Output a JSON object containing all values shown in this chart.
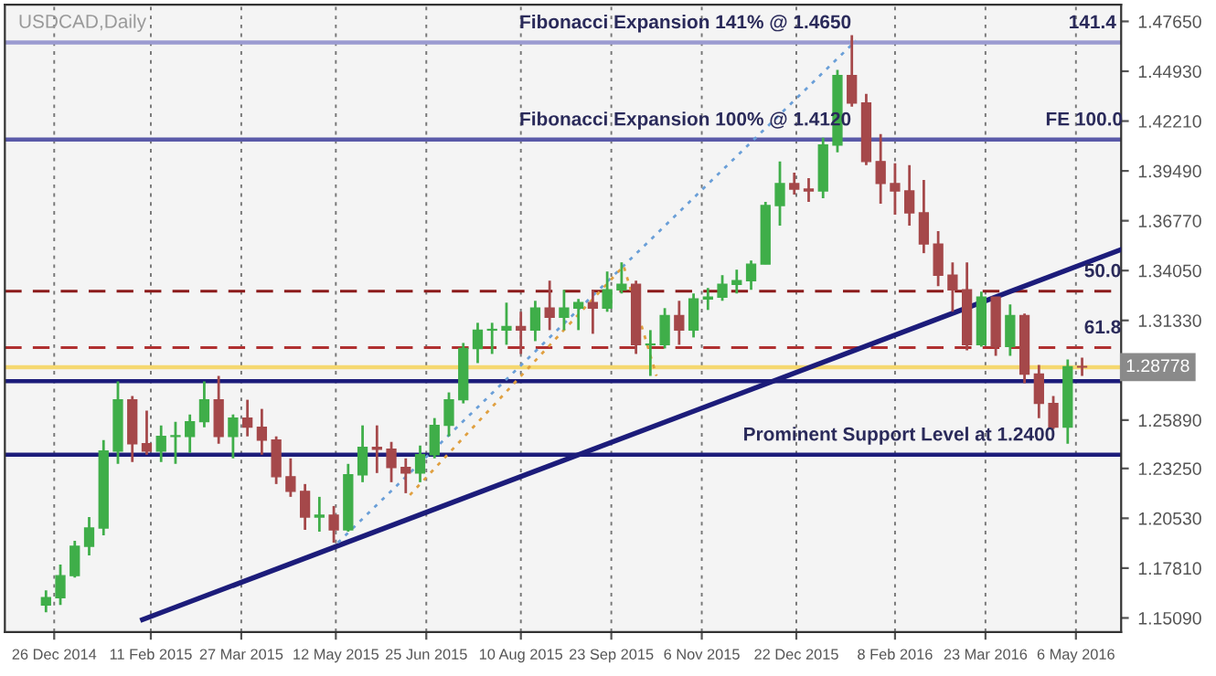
{
  "chart_data": {
    "type": "candlestick",
    "title": "USDCAD,Daily",
    "x": [
      "2014-12-22",
      "2014-12-29",
      "2015-01-05",
      "2015-01-12",
      "2015-01-19",
      "2015-01-26",
      "2015-02-02",
      "2015-02-09",
      "2015-02-16",
      "2015-02-23",
      "2015-03-02",
      "2015-03-09",
      "2015-03-16",
      "2015-03-23",
      "2015-03-30",
      "2015-04-06",
      "2015-04-13",
      "2015-04-20",
      "2015-04-27",
      "2015-05-04",
      "2015-05-11",
      "2015-05-18",
      "2015-05-25",
      "2015-06-01",
      "2015-06-08",
      "2015-06-15",
      "2015-06-22",
      "2015-06-29",
      "2015-07-06",
      "2015-07-13",
      "2015-07-20",
      "2015-07-27",
      "2015-08-03",
      "2015-08-10",
      "2015-08-17",
      "2015-08-24",
      "2015-08-31",
      "2015-09-07",
      "2015-09-14",
      "2015-09-21",
      "2015-09-28",
      "2015-10-05",
      "2015-10-12",
      "2015-10-19",
      "2015-10-26",
      "2015-11-02",
      "2015-11-09",
      "2015-11-16",
      "2015-11-23",
      "2015-11-30",
      "2015-12-07",
      "2015-12-14",
      "2015-12-21",
      "2015-12-28",
      "2016-01-04",
      "2016-01-11",
      "2016-01-18",
      "2016-01-25",
      "2016-02-01",
      "2016-02-08",
      "2016-02-15",
      "2016-02-22",
      "2016-02-29",
      "2016-03-07",
      "2016-03-14",
      "2016-03-21",
      "2016-03-28",
      "2016-04-04",
      "2016-04-11",
      "2016-04-18",
      "2016-04-25",
      "2016-05-02",
      "2016-05-09"
    ],
    "ohlc": [
      [
        1.158,
        1.166,
        1.154,
        1.162
      ],
      [
        1.162,
        1.18,
        1.158,
        1.174
      ],
      [
        1.174,
        1.193,
        1.173,
        1.19
      ],
      [
        1.19,
        1.206,
        1.185,
        1.2
      ],
      [
        1.2,
        1.248,
        1.196,
        1.242
      ],
      [
        1.242,
        1.28,
        1.235,
        1.27
      ],
      [
        1.27,
        1.272,
        1.236,
        1.246
      ],
      [
        1.246,
        1.264,
        1.24,
        1.242
      ],
      [
        1.242,
        1.256,
        1.236,
        1.25
      ],
      [
        1.25,
        1.258,
        1.235,
        1.25
      ],
      [
        1.25,
        1.262,
        1.241,
        1.258
      ],
      [
        1.258,
        1.28,
        1.255,
        1.27
      ],
      [
        1.27,
        1.283,
        1.246,
        1.25
      ],
      [
        1.25,
        1.262,
        1.238,
        1.26
      ],
      [
        1.26,
        1.27,
        1.25,
        1.255
      ],
      [
        1.255,
        1.265,
        1.24,
        1.248
      ],
      [
        1.248,
        1.25,
        1.224,
        1.228
      ],
      [
        1.228,
        1.238,
        1.217,
        1.22
      ],
      [
        1.22,
        1.224,
        1.199,
        1.206
      ],
      [
        1.206,
        1.217,
        1.198,
        1.207
      ],
      [
        1.207,
        1.212,
        1.192,
        1.199
      ],
      [
        1.199,
        1.235,
        1.198,
        1.229
      ],
      [
        1.229,
        1.256,
        1.225,
        1.244
      ],
      [
        1.244,
        1.256,
        1.23,
        1.243
      ],
      [
        1.243,
        1.247,
        1.225,
        1.233
      ],
      [
        1.233,
        1.238,
        1.219,
        1.23
      ],
      [
        1.23,
        1.245,
        1.225,
        1.24
      ],
      [
        1.24,
        1.26,
        1.238,
        1.256
      ],
      [
        1.256,
        1.274,
        1.25,
        1.27
      ],
      [
        1.27,
        1.301,
        1.268,
        1.298
      ],
      [
        1.298,
        1.312,
        1.29,
        1.308
      ],
      [
        1.308,
        1.312,
        1.295,
        1.308
      ],
      [
        1.308,
        1.323,
        1.3,
        1.31
      ],
      [
        1.31,
        1.318,
        1.295,
        1.308
      ],
      [
        1.308,
        1.324,
        1.302,
        1.32
      ],
      [
        1.32,
        1.335,
        1.308,
        1.315
      ],
      [
        1.315,
        1.33,
        1.308,
        1.32
      ],
      [
        1.32,
        1.325,
        1.308,
        1.323
      ],
      [
        1.323,
        1.33,
        1.306,
        1.32
      ],
      [
        1.32,
        1.34,
        1.318,
        1.33
      ],
      [
        1.33,
        1.345,
        1.328,
        1.333
      ],
      [
        1.333,
        1.335,
        1.295,
        1.3
      ],
      [
        1.3,
        1.308,
        1.283,
        1.3
      ],
      [
        1.3,
        1.32,
        1.298,
        1.316
      ],
      [
        1.316,
        1.324,
        1.3,
        1.308
      ],
      [
        1.308,
        1.328,
        1.304,
        1.325
      ],
      [
        1.325,
        1.331,
        1.319,
        1.326
      ],
      [
        1.326,
        1.338,
        1.324,
        1.333
      ],
      [
        1.333,
        1.341,
        1.328,
        1.335
      ],
      [
        1.335,
        1.346,
        1.33,
        1.344
      ],
      [
        1.344,
        1.378,
        1.344,
        1.376
      ],
      [
        1.376,
        1.4,
        1.365,
        1.388
      ],
      [
        1.388,
        1.394,
        1.382,
        1.385
      ],
      [
        1.385,
        1.391,
        1.378,
        1.384
      ],
      [
        1.384,
        1.413,
        1.38,
        1.409
      ],
      [
        1.409,
        1.45,
        1.405,
        1.447
      ],
      [
        1.447,
        1.469,
        1.43,
        1.432
      ],
      [
        1.432,
        1.437,
        1.398,
        1.4
      ],
      [
        1.4,
        1.415,
        1.377,
        1.388
      ],
      [
        1.388,
        1.399,
        1.371,
        1.384
      ],
      [
        1.384,
        1.398,
        1.365,
        1.372
      ],
      [
        1.372,
        1.39,
        1.35,
        1.355
      ],
      [
        1.355,
        1.362,
        1.332,
        1.338
      ],
      [
        1.338,
        1.345,
        1.318,
        1.33
      ],
      [
        1.33,
        1.345,
        1.297,
        1.3
      ],
      [
        1.3,
        1.329,
        1.299,
        1.326
      ],
      [
        1.326,
        1.326,
        1.294,
        1.299
      ],
      [
        1.299,
        1.322,
        1.294,
        1.316
      ],
      [
        1.316,
        1.317,
        1.279,
        1.284
      ],
      [
        1.284,
        1.289,
        1.26,
        1.268
      ],
      [
        1.268,
        1.272,
        1.254,
        1.255
      ],
      [
        1.255,
        1.292,
        1.246,
        1.288
      ],
      [
        1.288,
        1.293,
        1.283,
        1.2878
      ]
    ],
    "colors": [
      "#3fae49",
      "#3fae49",
      "#3fae49",
      "#3fae49",
      "#3fae49",
      "#3fae49",
      "#a5484a",
      "#a5484a",
      "#3fae49",
      "#3fae49",
      "#3fae49",
      "#3fae49",
      "#a5484a",
      "#3fae49",
      "#a5484a",
      "#a5484a",
      "#a5484a",
      "#a5484a",
      "#a5484a",
      "#3fae49",
      "#a5484a",
      "#3fae49",
      "#3fae49",
      "#a5484a",
      "#a5484a",
      "#a5484a",
      "#3fae49",
      "#3fae49",
      "#3fae49",
      "#3fae49",
      "#3fae49",
      "#3fae49",
      "#3fae49",
      "#a5484a",
      "#3fae49",
      "#a5484a",
      "#3fae49",
      "#3fae49",
      "#a5484a",
      "#3fae49",
      "#3fae49",
      "#a5484a",
      "#3fae49",
      "#3fae49",
      "#a5484a",
      "#3fae49",
      "#3fae49",
      "#3fae49",
      "#3fae49",
      "#3fae49",
      "#3fae49",
      "#3fae49",
      "#a5484a",
      "#a5484a",
      "#3fae49",
      "#3fae49",
      "#a5484a",
      "#a5484a",
      "#a5484a",
      "#a5484a",
      "#a5484a",
      "#a5484a",
      "#a5484a",
      "#a5484a",
      "#a5484a",
      "#3fae49",
      "#a5484a",
      "#3fae49",
      "#a5484a",
      "#a5484a",
      "#a5484a",
      "#3fae49",
      "#a5484a"
    ],
    "series": [
      {
        "type": "line",
        "color": "#1c1c7a",
        "x": [
          "2015-02-07",
          "2016-05-28"
        ],
        "values": [
          1.15,
          1.352
        ],
        "line_style": "solid"
      },
      {
        "type": "line",
        "color": "#6a9fd8",
        "x": [
          "2015-05-13",
          "2016-01-20"
        ],
        "values": [
          1.192,
          1.466
        ],
        "line_style": "dotted"
      },
      {
        "type": "line",
        "color": "#e0a040",
        "x": [
          "2015-06-17",
          "2015-09-29",
          "2015-10-15"
        ],
        "values": [
          1.218,
          1.343,
          1.283
        ],
        "line_style": "dotted"
      }
    ],
    "ref_lines": [
      {
        "axis": "y",
        "value": 1.465,
        "color": "#9b9bd0",
        "line_style": "solid"
      },
      {
        "axis": "y",
        "value": 1.412,
        "color": "#5a5aa8",
        "line_style": "solid"
      },
      {
        "axis": "y",
        "value": 1.3293,
        "color": "#8b1a1a",
        "line_style": "dashed"
      },
      {
        "axis": "y",
        "value": 1.2985,
        "color": "#b03030",
        "line_style": "dashed"
      },
      {
        "axis": "y",
        "value": 1.28778,
        "color": "#f5d870",
        "line_style": "solid",
        "label": "1.28778"
      },
      {
        "axis": "y",
        "value": 1.2801,
        "color": "#1c1c7a",
        "line_style": "solid"
      },
      {
        "axis": "y",
        "value": 1.24,
        "color": "#1c1c7a",
        "line_style": "solid"
      }
    ],
    "annotations": [
      {
        "text": "Fibonacci Expansion 141% @ 1.4650",
        "x": "2015-10-29",
        "y": 1.465
      },
      {
        "text": "141.4",
        "x": "2016-05-14",
        "y": 1.465
      },
      {
        "text": "Fibonacci Expansion 100% @ 1.4120",
        "x": "2015-10-29",
        "y": 1.412
      },
      {
        "text": "FE 100.0",
        "x": "2016-05-10",
        "y": 1.412
      },
      {
        "text": "50.0",
        "x": "2016-05-19",
        "y": 1.3293
      },
      {
        "text": "61.8",
        "x": "2016-05-19",
        "y": 1.2985
      },
      {
        "text": "Prominent Support Level at 1.2400",
        "x": "2016-02-10",
        "y": 1.24
      }
    ],
    "xlim": [
      "2014-12-02",
      "2016-05-28"
    ],
    "xticks": [
      {
        "value": "2014-12-26",
        "label": "26 Dec 2014"
      },
      {
        "value": "2015-02-11",
        "label": "11 Feb 2015"
      },
      {
        "value": "2015-03-27",
        "label": "27 Mar 2015"
      },
      {
        "value": "2015-05-12",
        "label": "12 May 2015"
      },
      {
        "value": "2015-06-25",
        "label": "25 Jun 2015"
      },
      {
        "value": "2015-08-10",
        "label": "10 Aug 2015"
      },
      {
        "value": "2015-09-23",
        "label": "23 Sep 2015"
      },
      {
        "value": "2015-11-06",
        "label": "6 Nov 2015"
      },
      {
        "value": "2015-12-22",
        "label": "22 Dec 2015"
      },
      {
        "value": "2016-02-08",
        "label": "8 Feb 2016"
      },
      {
        "value": "2016-03-23",
        "label": "23 Mar 2016"
      },
      {
        "value": "2016-05-06",
        "label": "6 May 2016"
      }
    ],
    "ylim": [
      1.1432,
      1.4856
    ],
    "yticks": [
      {
        "value": 1.4765,
        "label": "1.47650"
      },
      {
        "value": 1.4493,
        "label": "1.44930"
      },
      {
        "value": 1.4221,
        "label": "1.42210"
      },
      {
        "value": 1.3949,
        "label": "1.39490"
      },
      {
        "value": 1.3677,
        "label": "1.36770"
      },
      {
        "value": 1.3405,
        "label": "1.34050"
      },
      {
        "value": 1.3133,
        "label": "1.31330"
      },
      {
        "value": 1.2589,
        "label": "1.25890"
      },
      {
        "value": 1.2325,
        "label": "1.23250"
      },
      {
        "value": 1.2053,
        "label": "1.20530"
      },
      {
        "value": 1.1781,
        "label": "1.17810"
      },
      {
        "value": 1.1509,
        "label": "1.15090"
      }
    ],
    "grid": "x"
  }
}
